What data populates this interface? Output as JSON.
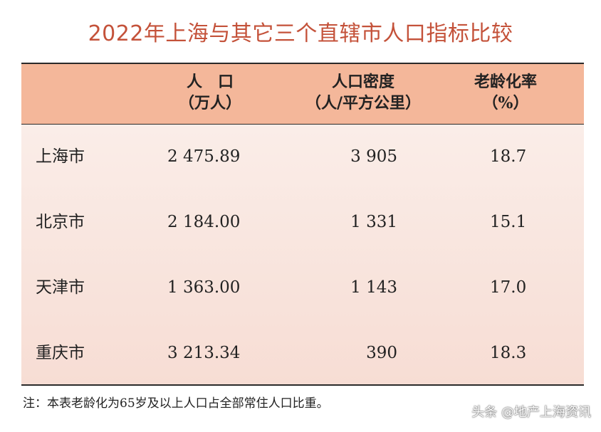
{
  "title": "2022年上海与其它三个直辖市人口指标比较",
  "table": {
    "headers": [
      {
        "line1": "人　口",
        "line2": "（万人）"
      },
      {
        "line1": "人口密度",
        "line2": "（人/平方公里）"
      },
      {
        "line1": "老龄化率",
        "line2": "（%）"
      }
    ],
    "rows": [
      {
        "city": "上海市",
        "population": "2 475.89",
        "density": "3 905",
        "aging": "18.7"
      },
      {
        "city": "北京市",
        "population": "2 184.00",
        "density": "1 331",
        "aging": "15.1"
      },
      {
        "city": "天津市",
        "population": "1 363.00",
        "density": "1 143",
        "aging": "17.0"
      },
      {
        "city": "重庆市",
        "population": "3 213.34",
        "density": "390",
        "aging": "18.3"
      }
    ]
  },
  "note": "注：本表老龄化为65岁及以上人口占全部常住人口比重。",
  "watermark": "头条 @地产上海资讯",
  "colors": {
    "title": "#c4523a",
    "header_bg": "#f4b79a",
    "body_bg": "#f8e4dc"
  }
}
